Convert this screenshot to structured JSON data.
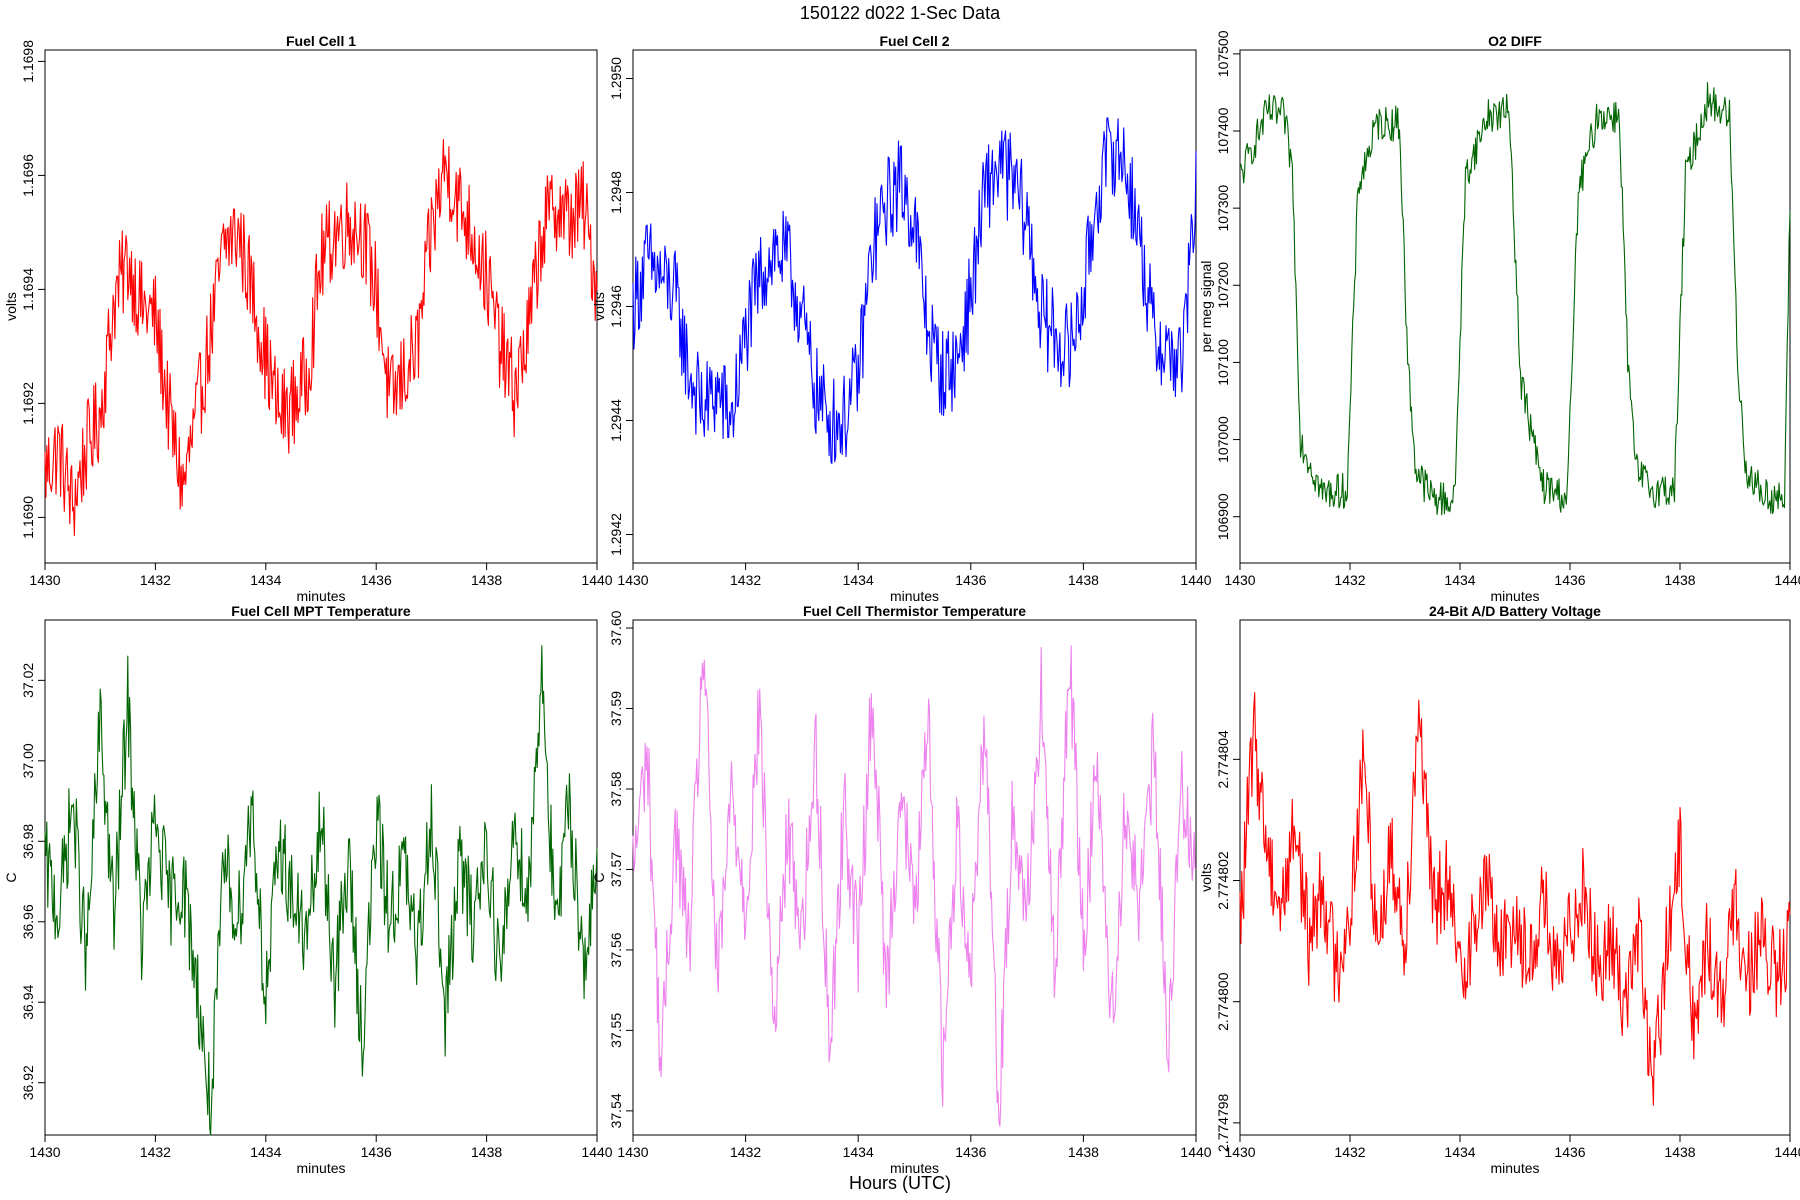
{
  "figure": {
    "title": "150122   d022   1-Sec Data",
    "outer_xlabel": "Hours (UTC)"
  },
  "chart_data": [
    {
      "type": "line",
      "title": "Fuel Cell 1",
      "xlabel": "minutes",
      "ylabel": "volts",
      "xlim": [
        1430,
        1440
      ],
      "ylim": [
        1.16892,
        1.16982
      ],
      "xticks": [
        "1430",
        "1432",
        "1434",
        "1436",
        "1438",
        "1440"
      ],
      "xtick_values": [
        1430,
        1432,
        1434,
        1436,
        1438,
        1440
      ],
      "yticks": [
        "1.1690",
        "1.1692",
        "1.1694",
        "1.1696",
        "1.1698"
      ],
      "ytick_values": [
        1.169,
        1.1692,
        1.1694,
        1.1696,
        1.1698
      ],
      "color": "#ff0000",
      "series": [
        {
          "x": [
            1430,
            1430.25,
            1430.5,
            1430.75,
            1431,
            1431.25,
            1431.5,
            1431.75,
            1432,
            1432.25,
            1432.5,
            1432.75,
            1433,
            1433.25,
            1433.5,
            1433.75,
            1434,
            1434.25,
            1434.5,
            1434.75,
            1435,
            1435.25,
            1435.5,
            1435.75,
            1436,
            1436.25,
            1436.5,
            1436.75,
            1437,
            1437.25,
            1437.5,
            1437.75,
            1438,
            1438.25,
            1438.5,
            1438.75,
            1439,
            1439.25,
            1439.5,
            1439.75,
            1440
          ],
          "y": [
            1.16908,
            1.16912,
            1.16902,
            1.16912,
            1.16918,
            1.16938,
            1.16945,
            1.16937,
            1.16935,
            1.16918,
            1.16905,
            1.16918,
            1.16932,
            1.16948,
            1.1695,
            1.1694,
            1.16928,
            1.16918,
            1.1692,
            1.16925,
            1.16945,
            1.1695,
            1.16952,
            1.1695,
            1.1694,
            1.1692,
            1.16925,
            1.1693,
            1.1695,
            1.16962,
            1.16955,
            1.1695,
            1.16942,
            1.1693,
            1.16922,
            1.16932,
            1.1695,
            1.16955,
            1.16952,
            1.16955,
            1.1694
          ]
        }
      ]
    },
    {
      "type": "line",
      "title": "Fuel Cell 2",
      "xlabel": "minutes",
      "ylabel": "volts",
      "xlim": [
        1430,
        1440
      ],
      "ylim": [
        1.29415,
        1.29505
      ],
      "xticks": [
        "1430",
        "1432",
        "1434",
        "1436",
        "1438",
        "1440"
      ],
      "xtick_values": [
        1430,
        1432,
        1434,
        1436,
        1438,
        1440
      ],
      "yticks": [
        "1.2942",
        "1.2944",
        "1.2946",
        "1.2948",
        "1.2950"
      ],
      "ytick_values": [
        1.2942,
        1.2944,
        1.2946,
        1.2948,
        1.295
      ],
      "color": "#0000ff",
      "series": [
        {
          "x": [
            1430,
            1430.25,
            1430.5,
            1430.75,
            1431,
            1431.25,
            1431.5,
            1431.75,
            1432,
            1432.25,
            1432.5,
            1432.75,
            1433,
            1433.25,
            1433.5,
            1433.75,
            1434,
            1434.25,
            1434.5,
            1434.75,
            1435,
            1435.25,
            1435.5,
            1435.75,
            1436,
            1436.25,
            1436.5,
            1436.75,
            1437,
            1437.25,
            1437.5,
            1437.75,
            1438,
            1438.25,
            1438.5,
            1438.75,
            1439,
            1439.25,
            1439.5,
            1439.75,
            1440
          ],
          "y": [
            1.2946,
            1.29468,
            1.29465,
            1.29462,
            1.29448,
            1.29442,
            1.29445,
            1.2944,
            1.29455,
            1.29465,
            1.2947,
            1.29468,
            1.29458,
            1.29445,
            1.2944,
            1.2944,
            1.29448,
            1.2947,
            1.29478,
            1.29482,
            1.29475,
            1.29455,
            1.29448,
            1.2945,
            1.29462,
            1.2948,
            1.29485,
            1.29482,
            1.29475,
            1.29458,
            1.29455,
            1.29452,
            1.29462,
            1.2948,
            1.29488,
            1.29485,
            1.29472,
            1.29455,
            1.29452,
            1.2945,
            1.2948
          ]
        }
      ]
    },
    {
      "type": "line",
      "title": "O2 DIFF",
      "xlabel": "minutes",
      "ylabel": "per meg signal",
      "xlim": [
        1430,
        1440
      ],
      "ylim": [
        106840,
        107505
      ],
      "xticks": [
        "1430",
        "1432",
        "1434",
        "1436",
        "1438",
        "1440"
      ],
      "xtick_values": [
        1430,
        1432,
        1434,
        1436,
        1438,
        1440
      ],
      "yticks": [
        "106900",
        "107000",
        "107100",
        "107200",
        "107300",
        "107400",
        "107500"
      ],
      "ytick_values": [
        106900,
        107000,
        107100,
        107200,
        107300,
        107400,
        107500
      ],
      "color": "#006400",
      "series": [
        {
          "x": [
            1430,
            1430.5,
            1430.8,
            1430.95,
            1431.1,
            1431.5,
            1431.95,
            1432.15,
            1432.5,
            1432.9,
            1433.05,
            1433.2,
            1433.5,
            1433.9,
            1434.1,
            1434.5,
            1434.9,
            1435.1,
            1435.5,
            1435.95,
            1436.15,
            1436.5,
            1436.9,
            1437.05,
            1437.2,
            1437.5,
            1437.9,
            1438.1,
            1438.5,
            1438.9,
            1439.05,
            1439.2,
            1439.5,
            1439.9,
            1440
          ],
          "y": [
            107340,
            107425,
            107420,
            107350,
            107000,
            106930,
            106935,
            107330,
            107410,
            107410,
            107100,
            106960,
            106925,
            106920,
            107340,
            107420,
            107425,
            107080,
            106940,
            106925,
            107320,
            107420,
            107420,
            107100,
            106960,
            106935,
            106935,
            107340,
            107440,
            107420,
            107100,
            106960,
            106930,
            106920,
            107300
          ]
        }
      ]
    },
    {
      "type": "line",
      "title": "Fuel Cell MPT Temperature",
      "xlabel": "minutes",
      "ylabel": "C",
      "xlim": [
        1430,
        1440
      ],
      "ylim": [
        36.907,
        37.035
      ],
      "xticks": [
        "1430",
        "1432",
        "1434",
        "1436",
        "1438",
        "1440"
      ],
      "xtick_values": [
        1430,
        1432,
        1434,
        1436,
        1438,
        1440
      ],
      "yticks": [
        "36.92",
        "36.94",
        "36.96",
        "36.98",
        "37.00",
        "37.02"
      ],
      "ytick_values": [
        36.92,
        36.94,
        36.96,
        36.98,
        37.0,
        37.02
      ],
      "color": "#006400",
      "series": [
        {
          "x": [
            1430,
            1430.25,
            1430.5,
            1430.75,
            1431,
            1431.25,
            1431.5,
            1431.75,
            1432,
            1432.25,
            1432.5,
            1432.75,
            1433,
            1433.25,
            1433.5,
            1433.75,
            1434,
            1434.25,
            1434.5,
            1434.75,
            1435,
            1435.25,
            1435.5,
            1435.75,
            1436,
            1436.25,
            1436.5,
            1436.75,
            1437,
            1437.25,
            1437.5,
            1437.75,
            1438,
            1438.25,
            1438.5,
            1438.75,
            1439,
            1439.25,
            1439.5,
            1439.75,
            1440
          ],
          "y": [
            36.975,
            36.962,
            36.99,
            36.95,
            37.01,
            36.96,
            37.015,
            36.955,
            36.985,
            36.965,
            36.97,
            36.945,
            36.912,
            36.975,
            36.96,
            36.99,
            36.94,
            36.98,
            36.965,
            36.955,
            36.985,
            36.945,
            36.975,
            36.93,
            36.985,
            36.96,
            36.975,
            36.95,
            36.99,
            36.935,
            36.975,
            36.96,
            36.98,
            36.945,
            36.985,
            36.965,
            37.025,
            36.955,
            36.99,
            36.95,
            36.97
          ]
        }
      ]
    },
    {
      "type": "line",
      "title": "Fuel Cell Thermistor Temperature",
      "xlabel": "minutes",
      "ylabel": "C",
      "xlim": [
        1430,
        1440
      ],
      "ylim": [
        37.537,
        37.601
      ],
      "xticks": [
        "1430",
        "1432",
        "1434",
        "1436",
        "1438",
        "1440"
      ],
      "xtick_values": [
        1430,
        1432,
        1434,
        1436,
        1438,
        1440
      ],
      "yticks": [
        "37.54",
        "37.55",
        "37.56",
        "37.57",
        "37.58",
        "37.59",
        "37.60"
      ],
      "ytick_values": [
        37.54,
        37.55,
        37.56,
        37.57,
        37.58,
        37.59,
        37.6
      ],
      "color": "#ee82ee",
      "series": [
        {
          "x": [
            1430,
            1430.25,
            1430.5,
            1430.75,
            1431,
            1431.25,
            1431.5,
            1431.75,
            1432,
            1432.25,
            1432.5,
            1432.75,
            1433,
            1433.25,
            1433.5,
            1433.75,
            1434,
            1434.25,
            1434.5,
            1434.75,
            1435,
            1435.25,
            1435.5,
            1435.75,
            1436,
            1436.25,
            1436.5,
            1436.75,
            1437,
            1437.25,
            1437.5,
            1437.75,
            1438,
            1438.25,
            1438.5,
            1438.75,
            1439,
            1439.25,
            1439.5,
            1439.75,
            1440
          ],
          "y": [
            37.57,
            37.585,
            37.545,
            37.575,
            37.56,
            37.598,
            37.555,
            37.58,
            37.565,
            37.59,
            37.55,
            37.575,
            37.562,
            37.585,
            37.548,
            37.578,
            37.56,
            37.592,
            37.555,
            37.58,
            37.565,
            37.588,
            37.545,
            37.575,
            37.558,
            37.59,
            37.54,
            37.578,
            37.565,
            37.592,
            37.555,
            37.598,
            37.56,
            37.585,
            37.55,
            37.578,
            37.565,
            37.585,
            37.548,
            37.58,
            37.572
          ]
        }
      ]
    },
    {
      "type": "line",
      "title": "24-Bit A/D Battery Voltage",
      "xlabel": "minutes",
      "ylabel": "volts",
      "xlim": [
        1430,
        1440
      ],
      "ylim": [
        2.7747978,
        2.7748063
      ],
      "xticks": [
        "1430",
        "1432",
        "1434",
        "1436",
        "1438",
        "1440"
      ],
      "xtick_values": [
        1430,
        1432,
        1434,
        1436,
        1438,
        1440
      ],
      "yticks": [
        "2.774798",
        "2.774800",
        "2.774802",
        "2.774804"
      ],
      "ytick_values": [
        2.774798,
        2.7748,
        2.774802,
        2.774804
      ],
      "color": "#ff0000",
      "series": [
        {
          "x": [
            1430,
            1430.25,
            1430.5,
            1430.75,
            1431,
            1431.25,
            1431.5,
            1431.75,
            1432,
            1432.25,
            1432.5,
            1432.75,
            1433,
            1433.25,
            1433.5,
            1433.75,
            1434,
            1434.25,
            1434.5,
            1434.75,
            1435,
            1435.25,
            1435.5,
            1435.75,
            1436,
            1436.25,
            1436.5,
            1436.75,
            1437,
            1437.25,
            1437.5,
            1437.75,
            1438,
            1438.25,
            1438.5,
            1438.75,
            1439,
            1439.25,
            1439.5,
            1439.75,
            1440
          ],
          "y": [
            2.7748012,
            2.7748045,
            2.7748025,
            2.7748015,
            2.774803,
            2.774801,
            2.774802,
            2.7748005,
            2.7748015,
            2.774804,
            2.774801,
            2.7748025,
            2.774801,
            2.774805,
            2.7748015,
            2.774802,
            2.7748005,
            2.7748012,
            2.774802,
            2.7748008,
            2.7748015,
            2.7748005,
            2.7748018,
            2.7748003,
            2.7748012,
            2.774802,
            2.7748005,
            2.774801,
            2.7748,
            2.7748012,
            2.7747985,
            2.7748008,
            2.7748025,
            2.7747995,
            2.774801,
            2.7748,
            2.7748015,
            2.7748005,
            2.774801,
            2.7748003,
            2.774801
          ]
        }
      ]
    }
  ]
}
